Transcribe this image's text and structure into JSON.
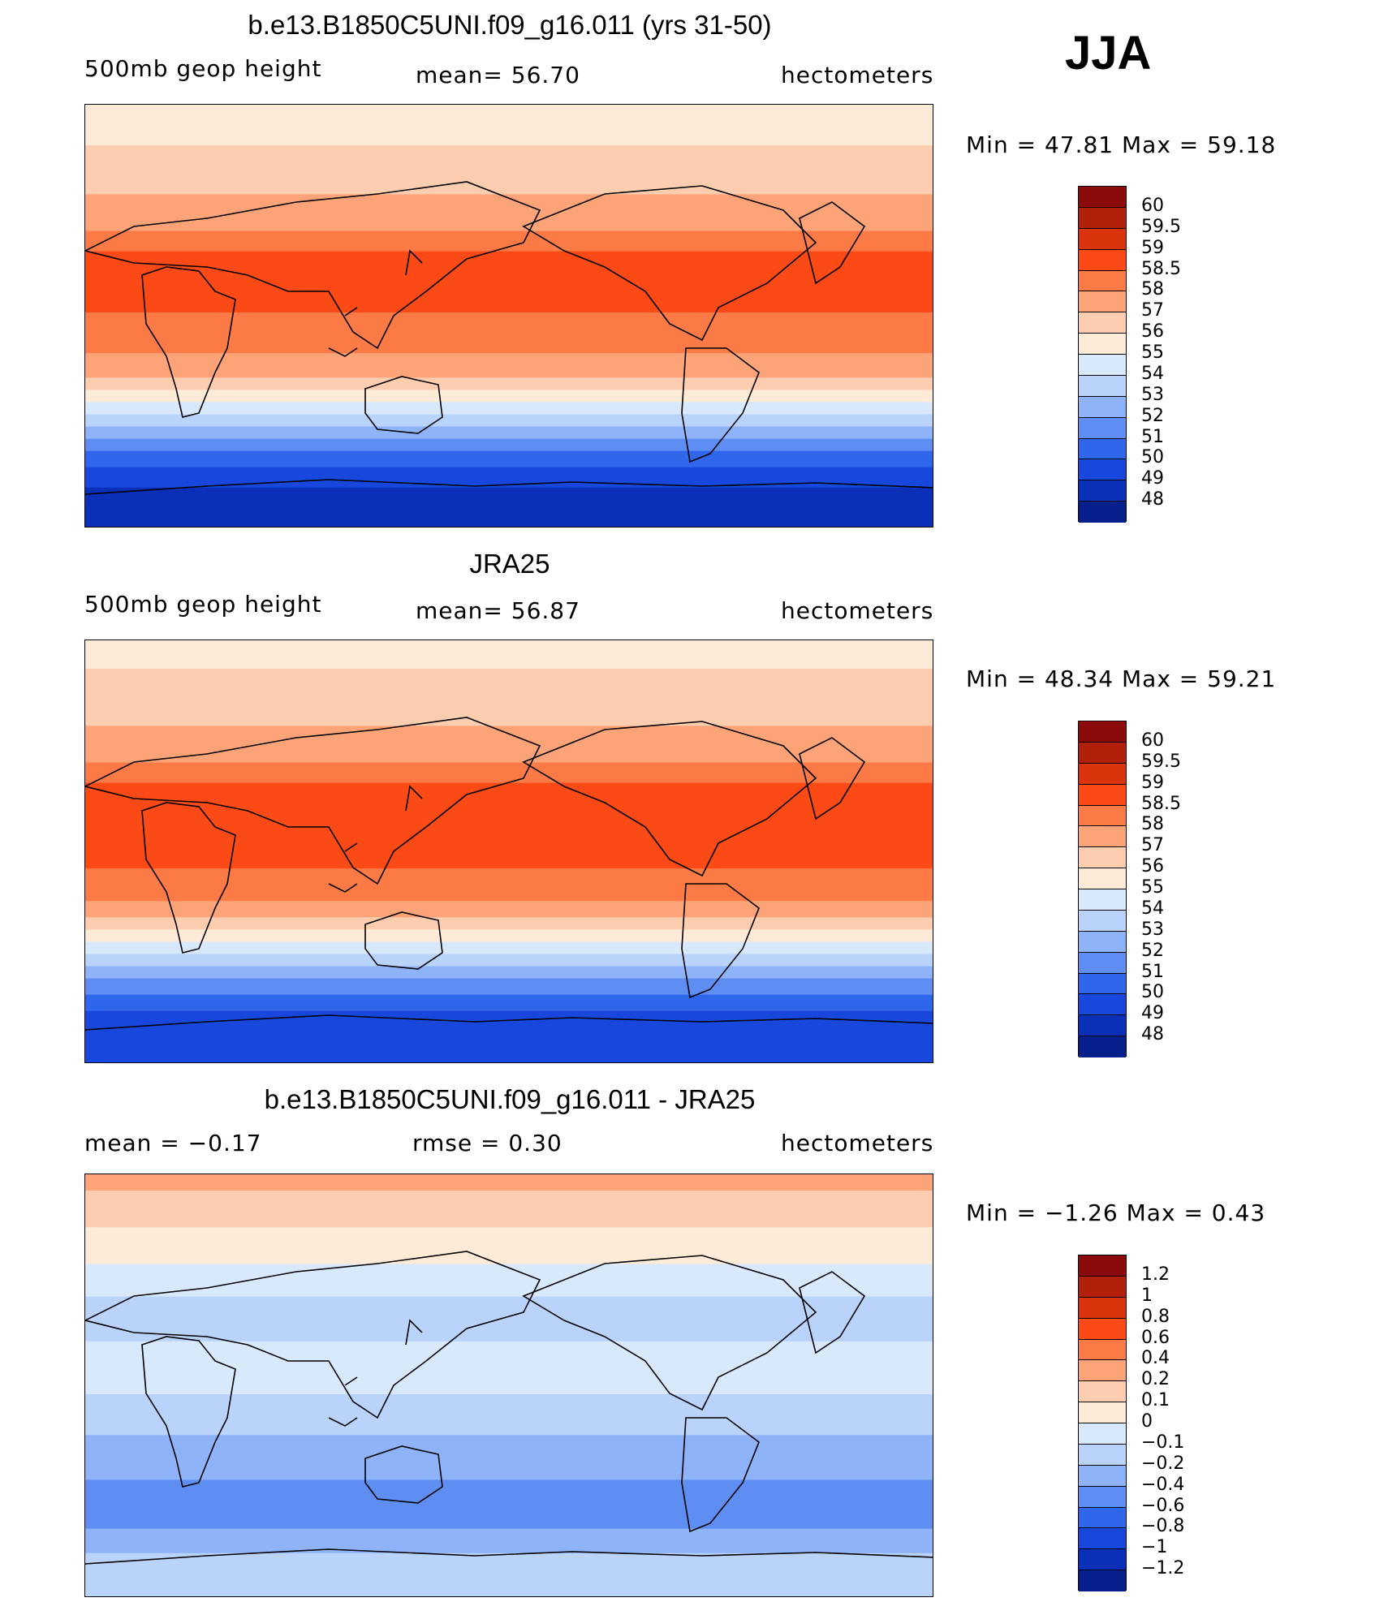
{
  "season": "JJA",
  "panels": [
    {
      "title": "b.e13.B1850C5UNI.f09_g16.011 (yrs 31-50)",
      "left_label": "500mb  geop  height",
      "center_label": "mean=   56.70",
      "units": "hectometers",
      "min_max": "Min  =    47.81  Max  =    59.18"
    },
    {
      "title": "JRA25",
      "left_label": "500mb  geop  height",
      "center_label": "mean=   56.87",
      "units": "hectometers",
      "min_max": "Min  =    48.34  Max  =    59.21"
    },
    {
      "title": "b.e13.B1850C5UNI.f09_g16.011 - JRA25",
      "left_label": "mean  =    −0.17",
      "center_label": "rmse  =      0.30",
      "units": "hectometers",
      "min_max": "Min  =    −1.26  Max  =      0.43"
    }
  ],
  "chart_data": [
    {
      "type": "heatmap",
      "title": "b.e13.B1850C5UNI.f09_g16.011 (yrs 31-50)",
      "field": "500mb geop height",
      "units": "hectometers",
      "mean": 56.7,
      "min": 47.81,
      "max": 59.18,
      "levels": [
        "60",
        "59.5",
        "59",
        "58.5",
        "58",
        "57",
        "56",
        "55",
        "54",
        "53",
        "52",
        "51",
        "50",
        "49",
        "48"
      ],
      "colors": [
        "#8b0a0a",
        "#b32009",
        "#d9340c",
        "#fb4a16",
        "#fc7a45",
        "#fda378",
        "#fdcdb0",
        "#fdebd8",
        "#d8e9fc",
        "#b9d3fb",
        "#8fb3f8",
        "#5f8ef3",
        "#2f66ec",
        "#1747dc",
        "#0a2fb8",
        "#05208a"
      ],
      "zonal_profile": [
        {
          "lat": 90,
          "value": 55.3
        },
        {
          "lat": 70,
          "value": 56.1
        },
        {
          "lat": 55,
          "value": 56.8
        },
        {
          "lat": 40,
          "value": 57.8
        },
        {
          "lat": 25,
          "value": 58.6
        },
        {
          "lat": 10,
          "value": 58.6
        },
        {
          "lat": -5,
          "value": 58.4
        },
        {
          "lat": -20,
          "value": 57.8
        },
        {
          "lat": -30,
          "value": 56.4
        },
        {
          "lat": -40,
          "value": 54.3
        },
        {
          "lat": -50,
          "value": 52.3
        },
        {
          "lat": -60,
          "value": 50.6
        },
        {
          "lat": -70,
          "value": 49.2
        },
        {
          "lat": -80,
          "value": 48.6
        },
        {
          "lat": -90,
          "value": 48.4
        }
      ]
    },
    {
      "type": "heatmap",
      "title": "JRA25",
      "field": "500mb geop height",
      "units": "hectometers",
      "mean": 56.87,
      "min": 48.34,
      "max": 59.21,
      "levels": [
        "60",
        "59.5",
        "59",
        "58.5",
        "58",
        "57",
        "56",
        "55",
        "54",
        "53",
        "52",
        "51",
        "50",
        "49",
        "48"
      ],
      "colors": [
        "#8b0a0a",
        "#b32009",
        "#d9340c",
        "#fb4a16",
        "#fc7a45",
        "#fda378",
        "#fdcdb0",
        "#fdebd8",
        "#d8e9fc",
        "#b9d3fb",
        "#8fb3f8",
        "#5f8ef3",
        "#2f66ec",
        "#1747dc",
        "#0a2fb8",
        "#05208a"
      ],
      "zonal_profile": [
        {
          "lat": 90,
          "value": 55.5
        },
        {
          "lat": 70,
          "value": 56.3
        },
        {
          "lat": 55,
          "value": 56.9
        },
        {
          "lat": 40,
          "value": 57.9
        },
        {
          "lat": 25,
          "value": 58.7
        },
        {
          "lat": 10,
          "value": 58.7
        },
        {
          "lat": -5,
          "value": 58.6
        },
        {
          "lat": -20,
          "value": 58.0
        },
        {
          "lat": -30,
          "value": 56.6
        },
        {
          "lat": -40,
          "value": 54.6
        },
        {
          "lat": -50,
          "value": 52.6
        },
        {
          "lat": -60,
          "value": 51.0
        },
        {
          "lat": -70,
          "value": 49.6
        },
        {
          "lat": -80,
          "value": 49.1
        },
        {
          "lat": -90,
          "value": 49.0
        }
      ]
    },
    {
      "type": "heatmap",
      "title": "b.e13.B1850C5UNI.f09_g16.011 - JRA25",
      "field": "difference",
      "units": "hectometers",
      "mean": -0.17,
      "rmse": 0.3,
      "min": -1.26,
      "max": 0.43,
      "levels": [
        "1.2",
        "1",
        "0.8",
        "0.6",
        "0.4",
        "0.2",
        "0.1",
        "0",
        "−0.1",
        "−0.2",
        "−0.4",
        "−0.6",
        "−0.8",
        "−1",
        "−1.2"
      ],
      "colors": [
        "#8b0a0a",
        "#b32009",
        "#d9340c",
        "#fb4a16",
        "#fc7a45",
        "#fda378",
        "#fdcdb0",
        "#fdebd8",
        "#d8e9fc",
        "#b9d3fb",
        "#8fb3f8",
        "#5f8ef3",
        "#2f66ec",
        "#1747dc",
        "#0a2fb8",
        "#05208a"
      ],
      "zonal_profile": [
        {
          "lat": 90,
          "value": 0.25
        },
        {
          "lat": 75,
          "value": 0.15
        },
        {
          "lat": 60,
          "value": 0.05
        },
        {
          "lat": 45,
          "value": -0.05
        },
        {
          "lat": 30,
          "value": -0.15
        },
        {
          "lat": 15,
          "value": -0.08
        },
        {
          "lat": 0,
          "value": -0.08
        },
        {
          "lat": -15,
          "value": -0.15
        },
        {
          "lat": -30,
          "value": -0.3
        },
        {
          "lat": -45,
          "value": -0.45
        },
        {
          "lat": -55,
          "value": -0.55
        },
        {
          "lat": -65,
          "value": -0.3
        },
        {
          "lat": -75,
          "value": -0.15
        },
        {
          "lat": -90,
          "value": -0.1
        }
      ]
    }
  ]
}
